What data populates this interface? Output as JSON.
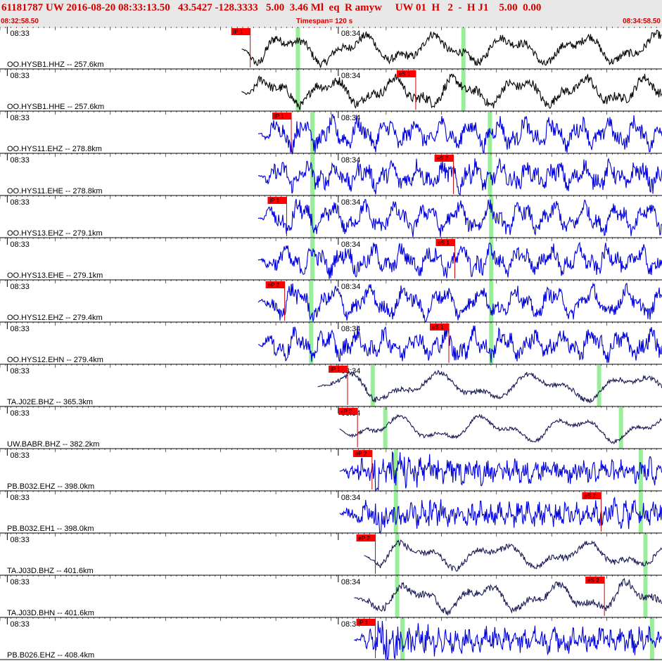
{
  "header": {
    "title": "61181787 UW 2016-08-20 08:33:13.50   43.5427 -128.3333   5.00  3.46 Ml  eq  R amyw     UW 01  H   2  -  H J1    5.00  0.00",
    "start_time": "08:32:58.50",
    "timespan": "Timespan= 120 s",
    "end_time": "08:34:58.50"
  },
  "colors": {
    "header_text": "#d40000",
    "header_bg": "#e8e8e8",
    "pick_box": "#ff0000",
    "pick_line": "#cc0000",
    "marker": "#99ee99",
    "trace_black": "#000000",
    "trace_blue": "#0000dd",
    "trace_navy": "#1a1a55"
  },
  "minute_labels": {
    "first": "08:33",
    "second": "08:34"
  },
  "traces": [
    {
      "label": "OO.HYSB1.HHZ -- 257.6km",
      "color": "black",
      "start": 0.365,
      "amp": 0.55,
      "freq": 0.06,
      "noise": 0.35,
      "pick": {
        "text": "iP 1",
        "x": 0.378
      },
      "markers": [
        0.45,
        0.7
      ],
      "show_08_34": true
    },
    {
      "label": "OO.HYSB1.HHE -- 257.6km",
      "color": "black",
      "start": 0.365,
      "amp": 0.5,
      "freq": 0.07,
      "noise": 0.4,
      "pick": {
        "text": "eS 1",
        "x": 0.628
      },
      "markers": [
        0.45,
        0.7
      ],
      "show_08_34": true
    },
    {
      "label": "OO.HYS11.EHZ -- 278.8km",
      "color": "blue",
      "start": 0.39,
      "amp": 0.45,
      "freq": 0.16,
      "noise": 0.65,
      "pick": {
        "text": "iP 1",
        "x": 0.44
      },
      "markers": [
        0.472,
        0.74
      ],
      "show_08_34": true
    },
    {
      "label": "OO.HYS11.EHE -- 278.8km",
      "color": "blue",
      "start": 0.39,
      "amp": 0.35,
      "freq": 0.16,
      "noise": 0.7,
      "pick": {
        "text": "eS 2",
        "x": 0.685
      },
      "markers": [
        0.472,
        0.74
      ],
      "show_08_34": true
    },
    {
      "label": "OO.HYS13.EHZ -- 279.1km",
      "color": "blue",
      "start": 0.39,
      "amp": 0.48,
      "freq": 0.14,
      "noise": 0.6,
      "pick": {
        "text": "iP 1",
        "x": 0.433
      },
      "markers": [
        0.472,
        0.742
      ],
      "show_08_34": true
    },
    {
      "label": "OO.HYS13.EHE -- 279.1km",
      "color": "blue",
      "start": 0.39,
      "amp": 0.4,
      "freq": 0.15,
      "noise": 0.65,
      "pick": {
        "text": "eS 1",
        "x": 0.687
      },
      "markers": [
        0.472,
        0.742
      ],
      "show_08_34": true
    },
    {
      "label": "OO.HYS12.EHZ -- 279.4km",
      "color": "blue",
      "start": 0.39,
      "amp": 0.5,
      "freq": 0.12,
      "noise": 0.6,
      "pick": {
        "text": "eP 2",
        "x": 0.43
      },
      "markers": [
        0.47,
        0.742
      ],
      "show_08_34": true
    },
    {
      "label": "OO.HYS12.EHN -- 279.4km",
      "color": "blue",
      "start": 0.39,
      "amp": 0.4,
      "freq": 0.15,
      "noise": 0.7,
      "pick": {
        "text": "eS 1",
        "x": 0.678
      },
      "markers": [
        0.47,
        0.742
      ],
      "show_08_34": true
    },
    {
      "label": "TA.J02E.BHZ -- 365.3km",
      "color": "navy",
      "start": 0.48,
      "amp": 0.5,
      "freq": 0.045,
      "noise": 0.2,
      "pick": {
        "text": "iP 1",
        "x": 0.525
      },
      "markers": [
        0.563,
        0.905
      ],
      "show_08_34": true
    },
    {
      "label": "UW.BABR.BHZ -- 382.2km",
      "color": "navy",
      "start": 0.513,
      "amp": 0.45,
      "freq": 0.05,
      "noise": 0.15,
      "pick": {
        "text": "eP 2",
        "x": 0.54
      },
      "markers": [
        0.582,
        0.938
      ],
      "show_08_34": true
    },
    {
      "label": "PB.B032.EHZ -- 398.0km",
      "color": "blue",
      "start": 0.513,
      "amp": 0.1,
      "freq": 0.2,
      "noise": 0.8,
      "pick": {
        "text": "eP 2",
        "x": 0.562
      },
      "markers": [
        0.598,
        0.968
      ],
      "show_08_34": false,
      "burst": 0.565
    },
    {
      "label": "PB.B032.EH1 -- 398.0km",
      "color": "blue",
      "start": 0.513,
      "amp": 0.1,
      "freq": 0.2,
      "noise": 0.8,
      "pick": {
        "text": "eS 2",
        "x": 0.908
      },
      "markers": [
        0.598,
        0.968
      ],
      "show_08_34": true,
      "burst": 0.565
    },
    {
      "label": "TA.J03D.BHZ -- 401.6km",
      "color": "navy",
      "start": 0.55,
      "amp": 0.45,
      "freq": 0.05,
      "noise": 0.25,
      "pick": {
        "text": "eP 2",
        "x": 0.567
      },
      "markers": [
        0.6,
        0.975
      ],
      "show_08_34": false
    },
    {
      "label": "TA.J03D.BHN -- 401.6km",
      "color": "navy",
      "start": 0.535,
      "amp": 0.5,
      "freq": 0.06,
      "noise": 0.3,
      "pick": {
        "text": "eS 2",
        "x": 0.913
      },
      "markers": [
        0.6,
        0.975
      ],
      "show_08_34": true
    },
    {
      "label": "PB.B026.EHZ -- 408.4km",
      "color": "blue",
      "start": 0.535,
      "amp": 0.1,
      "freq": 0.2,
      "noise": 0.8,
      "pick": {
        "text": "iP 1",
        "x": 0.567
      },
      "markers": [
        0.608,
        0.985
      ],
      "show_08_34": true,
      "burst": 0.57
    }
  ]
}
